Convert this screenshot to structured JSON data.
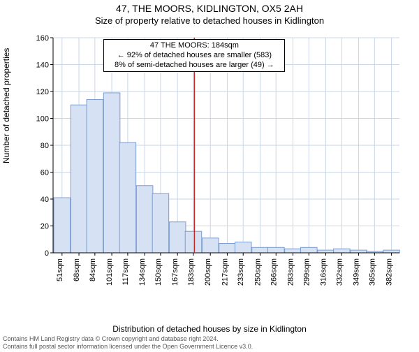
{
  "title": "47, THE MOORS, KIDLINGTON, OX5 2AH",
  "subtitle": "Size of property relative to detached houses in Kidlington",
  "y_axis_label": "Number of detached properties",
  "x_axis_label": "Distribution of detached houses by size in Kidlington",
  "footer_line1": "Contains HM Land Registry data © Crown copyright and database right 2024.",
  "footer_line2": "Contains full postal sector information licensed under the Open Government Licence v3.0.",
  "chart": {
    "type": "histogram",
    "bar_fill": "#d6e2f4",
    "bar_stroke": "#7a9cd0",
    "grid_color": "#c9d6e8",
    "axis_color": "#000000",
    "background": "#ffffff",
    "marker_line_color": "#c62828",
    "marker_x_value": 184,
    "y_ticks": [
      0,
      20,
      40,
      60,
      80,
      100,
      120,
      140,
      160
    ],
    "ylim": [
      0,
      160
    ],
    "x_ticks": [
      51,
      68,
      84,
      101,
      117,
      134,
      150,
      167,
      183,
      200,
      217,
      233,
      250,
      266,
      283,
      299,
      316,
      332,
      349,
      365,
      382
    ],
    "x_tick_suffix": "sqm",
    "xlim": [
      42,
      390
    ],
    "bin_width": 16.5,
    "bars": [
      {
        "x": 51,
        "h": 41
      },
      {
        "x": 68,
        "h": 110
      },
      {
        "x": 84,
        "h": 114
      },
      {
        "x": 101,
        "h": 119
      },
      {
        "x": 117,
        "h": 82
      },
      {
        "x": 134,
        "h": 50
      },
      {
        "x": 150,
        "h": 44
      },
      {
        "x": 167,
        "h": 23
      },
      {
        "x": 183,
        "h": 16
      },
      {
        "x": 200,
        "h": 11
      },
      {
        "x": 217,
        "h": 7
      },
      {
        "x": 233,
        "h": 8
      },
      {
        "x": 250,
        "h": 4
      },
      {
        "x": 266,
        "h": 4
      },
      {
        "x": 283,
        "h": 3
      },
      {
        "x": 299,
        "h": 4
      },
      {
        "x": 316,
        "h": 2
      },
      {
        "x": 332,
        "h": 3
      },
      {
        "x": 349,
        "h": 2
      },
      {
        "x": 365,
        "h": 1
      },
      {
        "x": 382,
        "h": 2
      }
    ],
    "tick_fontsize": 11,
    "label_fontsize": 12
  },
  "annotation": {
    "line1": "47 THE MOORS: 184sqm",
    "line2": "← 92% of detached houses are smaller (583)",
    "line3": "8% of semi-detached houses are larger (49) →"
  }
}
